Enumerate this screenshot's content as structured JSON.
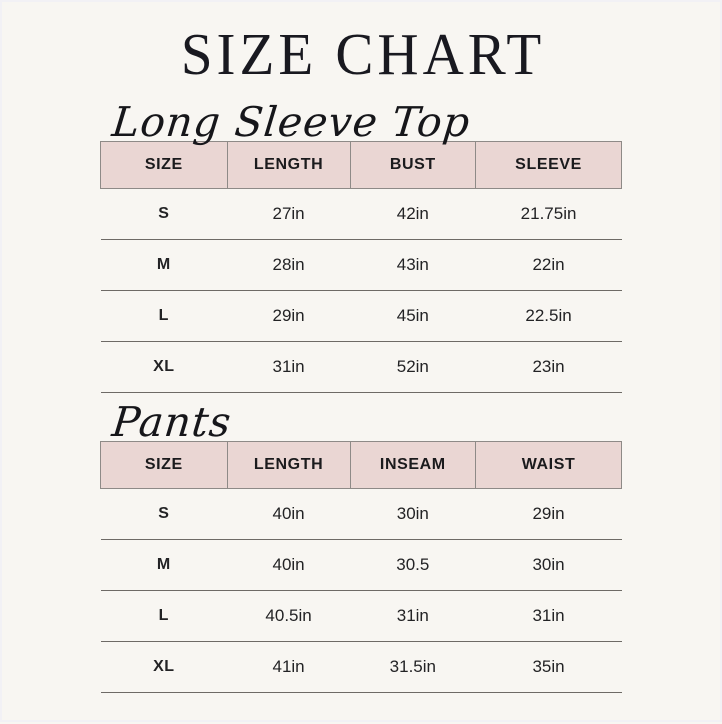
{
  "page": {
    "title": "SIZE CHART",
    "colors": {
      "background": "#f8f6f2",
      "header_fill": "#ead6d3",
      "header_border": "#8e8a87",
      "row_line": "#6e6a66",
      "text": "#1c1c1e"
    }
  },
  "sections": [
    {
      "heading": "Long Sleeve Top",
      "table": {
        "headers": [
          "SIZE",
          "LENGTH",
          "BUST",
          "SLEEVE"
        ],
        "rows": [
          [
            "S",
            "27in",
            "42in",
            "21.75in"
          ],
          [
            "M",
            "28in",
            "43in",
            "22in"
          ],
          [
            "L",
            "29in",
            "45in",
            "22.5in"
          ],
          [
            "XL",
            "31in",
            "52in",
            "23in"
          ]
        ]
      }
    },
    {
      "heading": "Pants",
      "table": {
        "headers": [
          "SIZE",
          "LENGTH",
          "INSEAM",
          "WAIST"
        ],
        "rows": [
          [
            "S",
            "40in",
            "30in",
            "29in"
          ],
          [
            "M",
            "40in",
            "30.5",
            "30in"
          ],
          [
            "L",
            "40.5in",
            "31in",
            "31in"
          ],
          [
            "XL",
            "41in",
            "31.5in",
            "35in"
          ]
        ]
      }
    }
  ]
}
